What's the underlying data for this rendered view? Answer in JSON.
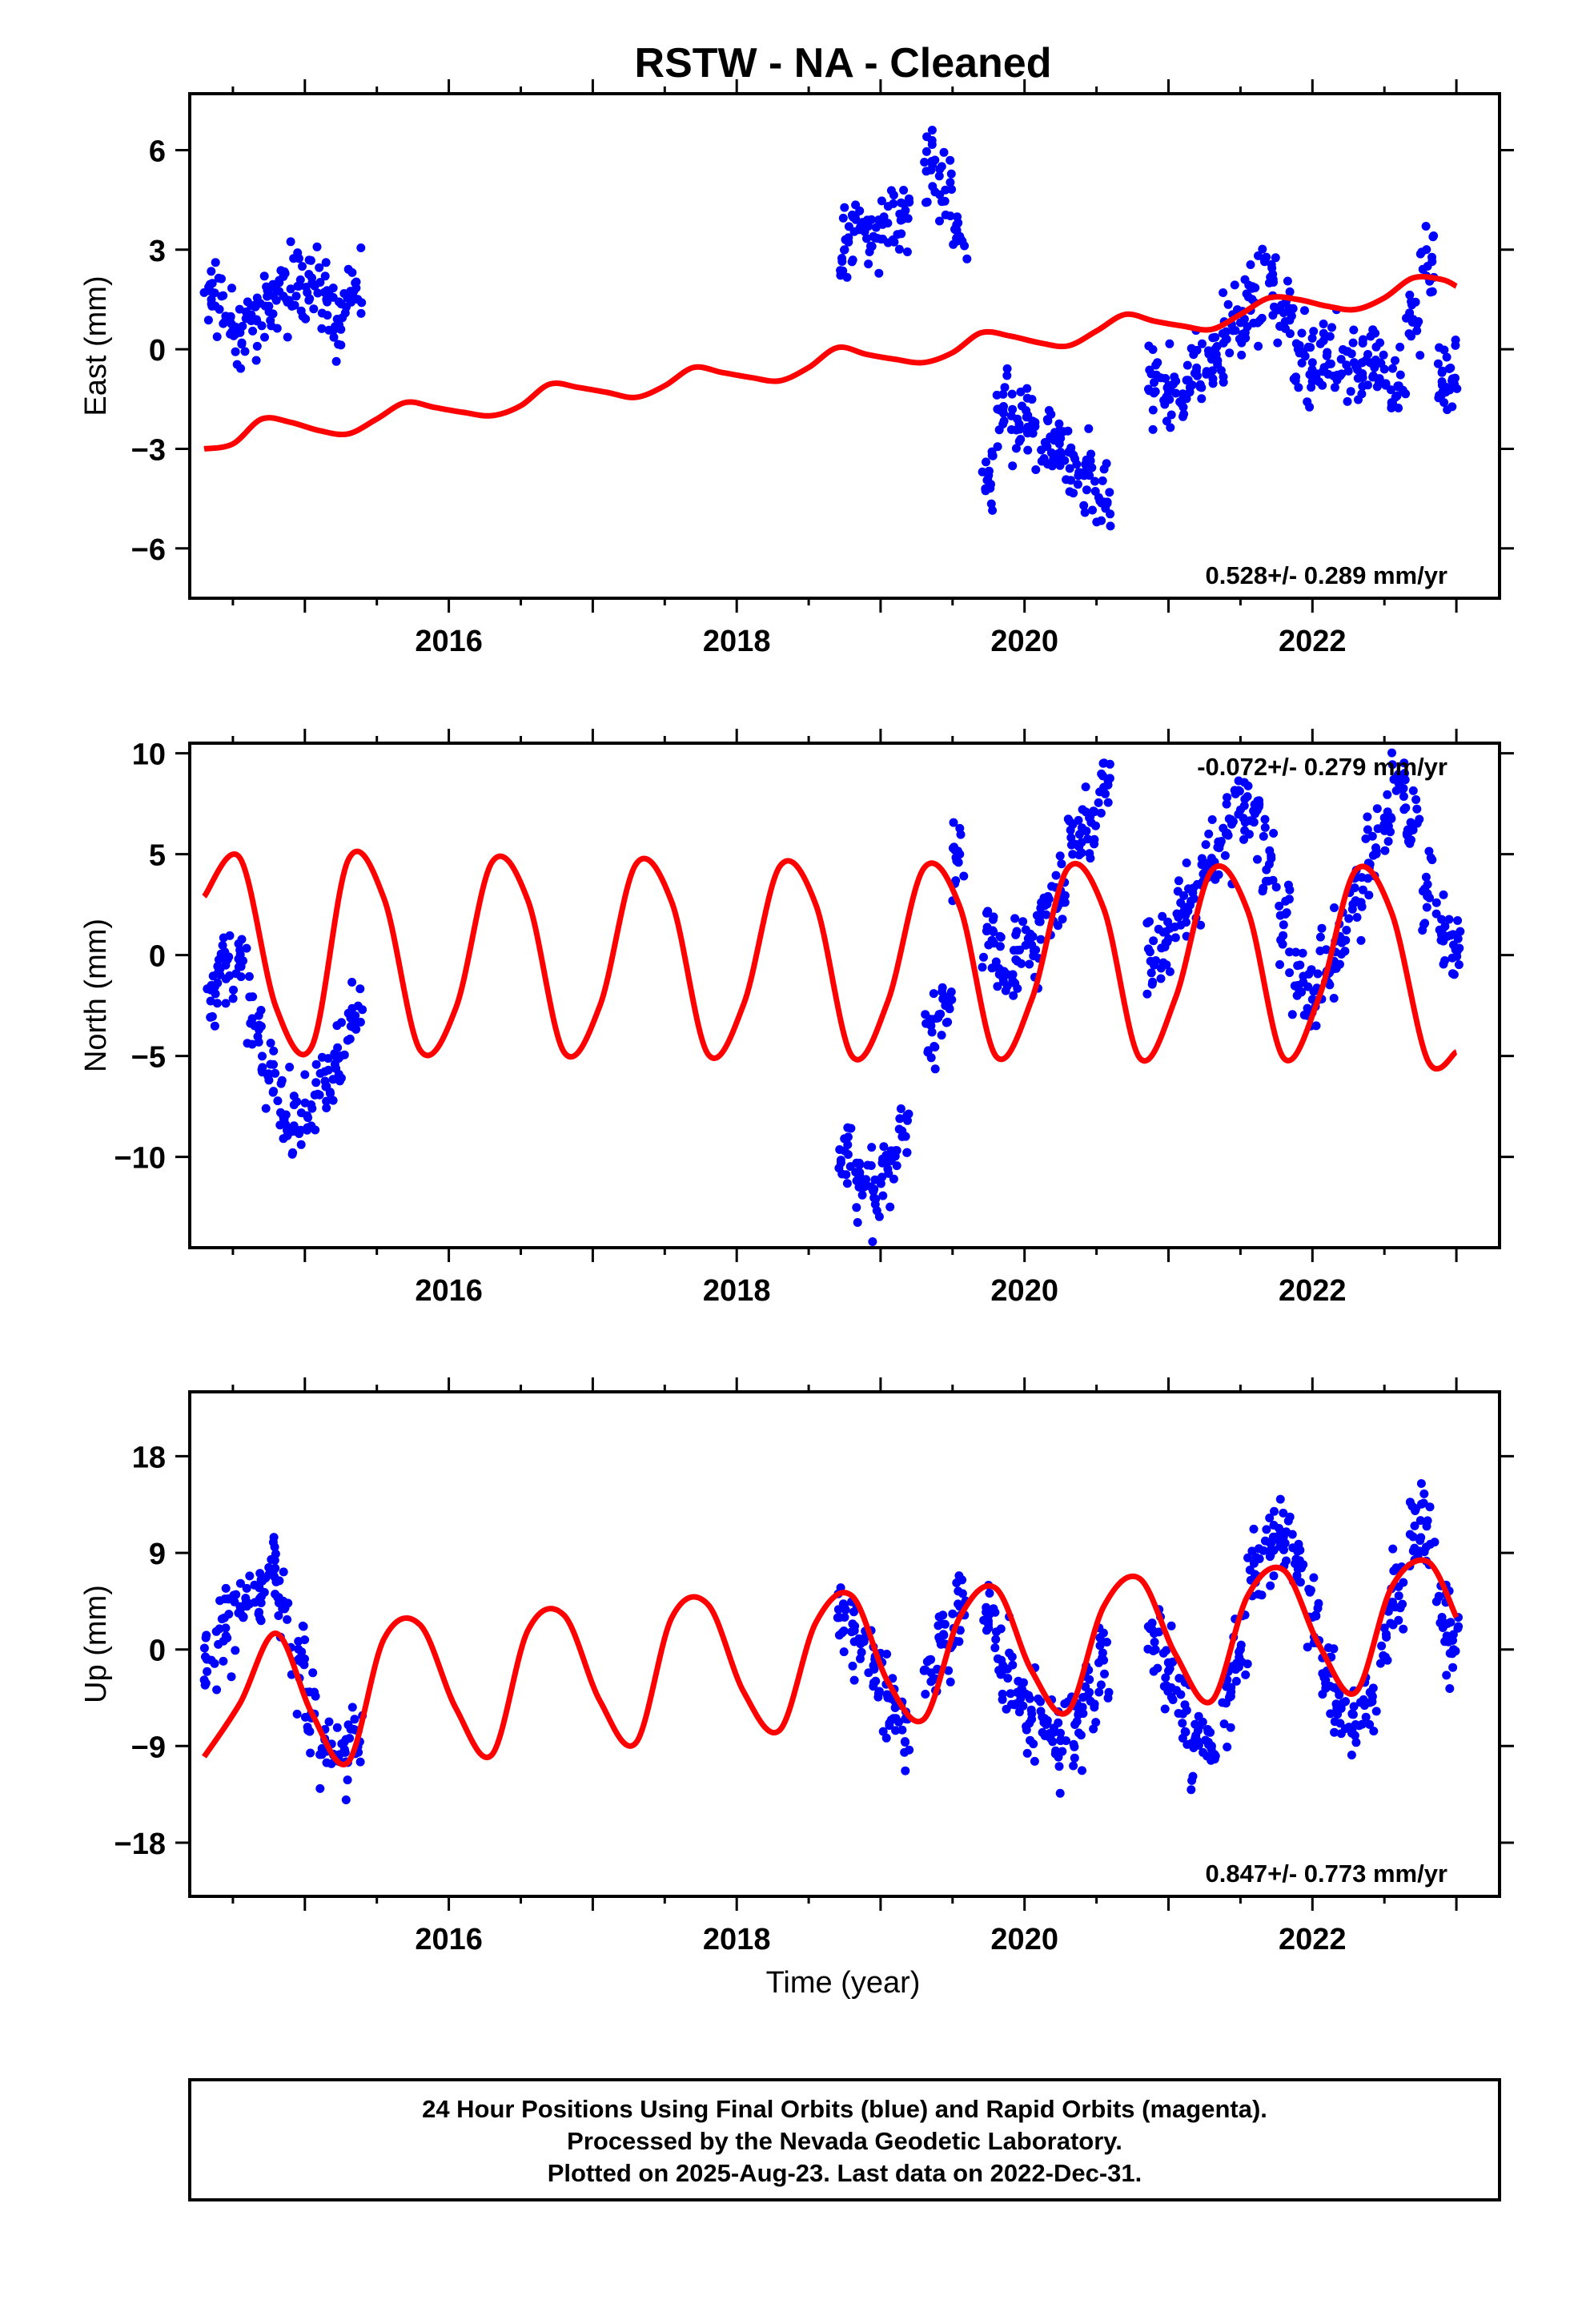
{
  "chart_data": {
    "type": "scatter",
    "title": "RSTW  - NA - Cleaned",
    "xlabel": "Time (year)",
    "xlim": [
      2014.2,
      2023.3
    ],
    "x_ticks": [
      2016,
      2018,
      2020,
      2022
    ],
    "x_tick_labels": [
      "2016",
      "2018",
      "2020",
      "2022"
    ],
    "grid": false,
    "legend": "none",
    "colors": {
      "data": "#0000ff",
      "model": "#ff0000",
      "frame": "#000000"
    },
    "panels": [
      {
        "name": "east",
        "ylabel": "East (mm)",
        "ylim": [
          -7.5,
          7.7
        ],
        "y_ticks": [
          -6,
          -3,
          0,
          3,
          6
        ],
        "y_tick_labels": [
          "−6",
          "−3",
          "0",
          "3",
          "6"
        ],
        "rate_text": "0.528+/- 0.289 mm/yr",
        "rate_position": "bottom-right",
        "series": [
          {
            "type": "scatter",
            "x": [
              2014.35,
              2014.45,
              2014.55,
              2014.65,
              2014.75,
              2014.85,
              2014.95,
              2015.05,
              2015.15,
              2015.25,
              2015.35,
              2018.75,
              2018.85,
              2018.95,
              2019.05,
              2019.15,
              2019.35,
              2019.45,
              2019.55,
              2019.75,
              2019.85,
              2019.95,
              2020.05,
              2020.15,
              2020.25,
              2020.35,
              2020.45,
              2020.55,
              2020.9,
              2021.0,
              2021.1,
              2021.2,
              2021.3,
              2021.4,
              2021.5,
              2021.6,
              2021.7,
              2021.8,
              2021.9,
              2022.0,
              2022.1,
              2022.2,
              2022.3,
              2022.4,
              2022.5,
              2022.6,
              2022.7,
              2022.8,
              2022.9,
              2022.98
            ],
            "y": [
              1.5,
              1.0,
              0.5,
              0.9,
              1.3,
              1.6,
              1.9,
              2.0,
              1.5,
              0.6,
              2.0,
              3.0,
              3.6,
              3.4,
              3.8,
              4.0,
              5.4,
              4.8,
              3.4,
              -3.8,
              -1.8,
              -2.1,
              -2.4,
              -2.8,
              -3.1,
              -3.3,
              -3.8,
              -4.6,
              -1.0,
              -1.3,
              -1.5,
              -0.8,
              -0.3,
              0.3,
              0.8,
              1.4,
              2.0,
              1.1,
              0.0,
              -0.4,
              -0.2,
              -0.3,
              -0.5,
              -0.4,
              -0.6,
              -1.1,
              0.9,
              2.5,
              -0.7,
              -1.0
            ]
          },
          {
            "type": "line",
            "x": [
              2014.3,
              2014.5,
              2014.7,
              2014.9,
              2015.1,
              2015.3,
              2015.5,
              2015.7,
              2015.9,
              2016.1,
              2016.3,
              2016.5,
              2016.7,
              2016.9,
              2017.1,
              2017.3,
              2017.5,
              2017.7,
              2017.9,
              2018.1,
              2018.3,
              2018.5,
              2018.7,
              2018.9,
              2019.1,
              2019.3,
              2019.5,
              2019.7,
              2019.9,
              2020.1,
              2020.3,
              2020.5,
              2020.7,
              2020.9,
              2021.1,
              2021.3,
              2021.5,
              2021.7,
              2021.9,
              2022.1,
              2022.3,
              2022.5,
              2022.7,
              2022.9,
              2023.0
            ],
            "y": [
              -3.0,
              -2.85,
              -2.1,
              -2.2,
              -2.45,
              -2.55,
              -2.1,
              -1.6,
              -1.75,
              -1.9,
              -2.0,
              -1.7,
              -1.05,
              -1.15,
              -1.3,
              -1.45,
              -1.1,
              -0.55,
              -0.7,
              -0.85,
              -0.95,
              -0.55,
              0.05,
              -0.15,
              -0.3,
              -0.4,
              -0.1,
              0.5,
              0.4,
              0.2,
              0.1,
              0.55,
              1.05,
              0.85,
              0.7,
              0.6,
              1.05,
              1.55,
              1.5,
              1.3,
              1.2,
              1.55,
              2.15,
              2.1,
              1.9
            ]
          }
        ]
      },
      {
        "name": "north",
        "ylabel": "North (mm)",
        "ylim": [
          -14.5,
          10.5
        ],
        "y_ticks": [
          -10,
          -5,
          0,
          5,
          10
        ],
        "y_tick_labels": [
          "−10",
          "−5",
          "0",
          "5",
          "10"
        ],
        "rate_text": "-0.072+/- 0.279 mm/yr",
        "rate_position": "top-right",
        "series": [
          {
            "type": "scatter",
            "x": [
              2014.35,
              2014.45,
              2014.55,
              2014.65,
              2014.75,
              2014.85,
              2014.95,
              2015.05,
              2015.15,
              2015.25,
              2015.35,
              2018.75,
              2018.85,
              2018.95,
              2019.05,
              2019.15,
              2019.35,
              2019.45,
              2019.55,
              2019.75,
              2019.85,
              2019.95,
              2020.05,
              2020.15,
              2020.25,
              2020.35,
              2020.45,
              2020.55,
              2020.9,
              2021.0,
              2021.1,
              2021.2,
              2021.3,
              2021.4,
              2021.5,
              2021.6,
              2021.7,
              2021.8,
              2021.9,
              2022.0,
              2022.1,
              2022.2,
              2022.3,
              2022.4,
              2022.5,
              2022.6,
              2022.7,
              2022.8,
              2022.9,
              2022.98
            ],
            "y": [
              -1.5,
              -0.5,
              -0.3,
              -3.5,
              -6.2,
              -8.0,
              -8.7,
              -7.6,
              -6.5,
              -5.0,
              -3.0,
              -9.7,
              -11.5,
              -11.7,
              -10.6,
              -9.0,
              -3.5,
              -2.5,
              5.0,
              0.5,
              -0.8,
              -0.3,
              0.5,
              2.0,
              3.2,
              5.5,
              6.8,
              8.3,
              -0.5,
              0.8,
              2.1,
              3.5,
              4.8,
              6.0,
              7.2,
              7.0,
              4.5,
              1.5,
              -1.5,
              -2.2,
              -0.8,
              0.8,
              2.7,
              4.5,
              6.8,
              8.5,
              6.2,
              3.5,
              1.2,
              0.5
            ]
          },
          {
            "type": "line",
            "x": [
              2014.3,
              2014.55,
              2014.8,
              2015.05,
              2015.3,
              2015.55,
              2015.8,
              2016.05,
              2016.3,
              2016.55,
              2016.8,
              2017.05,
              2017.3,
              2017.55,
              2017.8,
              2018.05,
              2018.3,
              2018.55,
              2018.8,
              2019.05,
              2019.3,
              2019.55,
              2019.8,
              2020.05,
              2020.3,
              2020.55,
              2020.8,
              2021.05,
              2021.3,
              2021.55,
              2021.8,
              2022.05,
              2022.3,
              2022.55,
              2022.8,
              2023.0
            ],
            "y": [
              2.9,
              4.8,
              -2.6,
              -4.5,
              4.7,
              2.8,
              -4.7,
              -2.6,
              4.6,
              2.7,
              -4.8,
              -2.5,
              4.5,
              2.6,
              -4.9,
              -2.4,
              4.4,
              2.5,
              -5.0,
              -2.3,
              4.3,
              2.4,
              -5.0,
              -2.2,
              4.3,
              2.3,
              -5.1,
              -2.1,
              4.2,
              2.2,
              -5.1,
              -2.0,
              4.2,
              2.1,
              -5.2,
              -4.8
            ]
          }
        ]
      },
      {
        "name": "up",
        "ylabel": "Up (mm)",
        "ylim": [
          -23,
          24
        ],
        "y_ticks": [
          -18,
          -9,
          0,
          9,
          18
        ],
        "y_tick_labels": [
          "−18",
          "−9",
          "0",
          "9",
          "18"
        ],
        "rate_text": "0.847+/- 0.773 mm/yr",
        "rate_position": "bottom-right",
        "series": [
          {
            "type": "scatter",
            "x": [
              2014.35,
              2014.45,
              2014.55,
              2014.65,
              2014.75,
              2014.85,
              2014.95,
              2015.05,
              2015.15,
              2015.25,
              2015.35,
              2018.75,
              2018.85,
              2018.95,
              2019.05,
              2019.15,
              2019.35,
              2019.45,
              2019.55,
              2019.75,
              2019.85,
              2019.95,
              2020.05,
              2020.15,
              2020.25,
              2020.35,
              2020.45,
              2020.55,
              2020.9,
              2021.0,
              2021.1,
              2021.2,
              2021.3,
              2021.4,
              2021.5,
              2021.6,
              2021.7,
              2021.8,
              2021.9,
              2022.0,
              2022.1,
              2022.2,
              2022.3,
              2022.4,
              2022.5,
              2022.6,
              2022.7,
              2022.8,
              2022.9,
              2022.98
            ],
            "y": [
              -1.0,
              2.0,
              4.0,
              6.0,
              7.0,
              4.5,
              -1.0,
              -6.0,
              -9.5,
              -10.5,
              -7.5,
              3.0,
              1.0,
              -1.5,
              -4.5,
              -7.5,
              -3.0,
              0.5,
              4.0,
              2.0,
              -1.5,
              -4.0,
              -6.0,
              -7.0,
              -8.5,
              -7.0,
              -4.0,
              -1.0,
              1.5,
              -2.0,
              -6.0,
              -8.5,
              -9.0,
              -5.0,
              0.0,
              7.0,
              10.0,
              10.5,
              7.5,
              3.0,
              -2.0,
              -5.5,
              -7.0,
              -4.0,
              2.0,
              5.0,
              10.5,
              12.0,
              3.0,
              0.0
            ]
          },
          {
            "type": "line",
            "x": [
              2014.3,
              2014.55,
              2014.8,
              2015.05,
              2015.3,
              2015.55,
              2015.8,
              2016.05,
              2016.3,
              2016.55,
              2016.8,
              2017.05,
              2017.3,
              2017.55,
              2017.8,
              2018.05,
              2018.3,
              2018.55,
              2018.8,
              2019.05,
              2019.3,
              2019.55,
              2019.8,
              2020.05,
              2020.3,
              2020.55,
              2020.8,
              2021.05,
              2021.3,
              2021.55,
              2021.8,
              2022.05,
              2022.3,
              2022.55,
              2022.8,
              2023.0
            ],
            "y": [
              -10.0,
              -5.0,
              1.5,
              -6.0,
              -10.5,
              1.0,
              2.3,
              -5.5,
              -9.8,
              1.8,
              3.2,
              -4.8,
              -8.7,
              3.0,
              4.2,
              -4.0,
              -7.5,
              2.5,
              5.0,
              -3.0,
              -6.5,
              3.0,
              5.7,
              -2.0,
              -5.8,
              4.0,
              6.6,
              -0.5,
              -4.8,
              5.0,
              7.4,
              0.3,
              -4.0,
              5.8,
              8.2,
              3.0
            ]
          }
        ]
      }
    ],
    "footer": {
      "lines": [
        "24 Hour Positions Using Final Orbits (blue) and Rapid Orbits (magenta).",
        "Processed by the Nevada Geodetic Laboratory.",
        "Plotted on 2025-Aug-23. Last data on 2022-Dec-31."
      ]
    }
  }
}
